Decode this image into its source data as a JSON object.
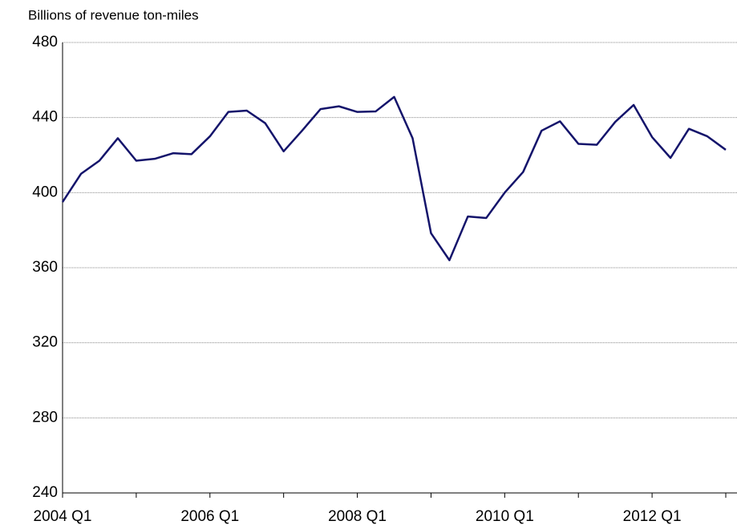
{
  "chart_data": {
    "type": "line",
    "y_axis_label": "Billions of revenue ton-miles",
    "categories": [
      "2004 Q1",
      null,
      null,
      null,
      null,
      null,
      null,
      null,
      "2006 Q1",
      null,
      null,
      null,
      null,
      null,
      null,
      null,
      "2008 Q1",
      null,
      null,
      null,
      null,
      null,
      null,
      null,
      "2010 Q1",
      null,
      null,
      null,
      null,
      null,
      null,
      null,
      "2012 Q1",
      null,
      null,
      null,
      null
    ],
    "series": [
      {
        "name": "Revenue ton-miles",
        "color": "#14146b",
        "values": [
          395,
          410,
          417,
          429,
          417,
          418,
          421,
          420.5,
          430,
          443,
          443.7,
          437,
          422,
          433,
          444.5,
          446,
          443,
          443.3,
          451,
          429,
          378.4,
          364,
          387.3,
          386.5,
          400,
          411,
          433,
          438,
          426,
          425.5,
          437.7,
          446.7,
          429.6,
          418.5,
          434,
          430,
          422.8
        ]
      }
    ],
    "ylim": [
      240,
      480
    ],
    "yticks": [
      240,
      280,
      320,
      360,
      400,
      440,
      480
    ],
    "grid": true
  }
}
